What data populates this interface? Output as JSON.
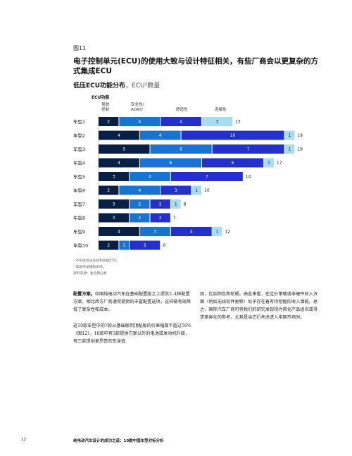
{
  "figure_label": "图11",
  "title": "电子控制单元(ECU)的使用大致与设计特征相关，有些厂商会以更复杂的方式集成ECU",
  "subtitle": "低压ECU功能分布",
  "subtitle_unit": "ECU¹数量",
  "chart_header": "ECU功能",
  "column_headers": [
    {
      "line1": "驾驶",
      "line2": "控制"
    },
    {
      "line1": "安全性/",
      "line2": "ADAS²"
    },
    {
      "line1": "舒适性",
      "line2": ""
    },
    {
      "line1": "连接性",
      "line2": ""
    }
  ],
  "colors": {
    "driving_control": "#0a1f44",
    "safety_adas": "#1a73d1",
    "comfort": "#2430c8",
    "connectivity": "#a8dcef"
  },
  "chart_data": {
    "type": "bar",
    "orientation": "horizontal",
    "stacked": true,
    "categories": [
      "车型1",
      "车型2",
      "车型3",
      "车型4",
      "车型5",
      "车型6",
      "车型7",
      "车型8",
      "车型9",
      "车型10"
    ],
    "series": [
      {
        "name": "驾驶控制",
        "values": [
          2,
          4,
          5,
          4,
          3,
          2,
          3,
          3,
          4,
          2
        ]
      },
      {
        "name": "安全性/ADAS",
        "values": [
          4,
          4,
          6,
          6,
          4,
          4,
          2,
          2,
          3,
          1
        ]
      },
      {
        "name": "舒适性",
        "values": [
          4,
          10,
          7,
          6,
          7,
          3,
          2,
          2,
          4,
          3
        ]
      },
      {
        "name": "连接性",
        "values": [
          3,
          1,
          1,
          1,
          0,
          1,
          1,
          0,
          1,
          0
        ]
      }
    ],
    "totals": [
      13,
      19,
      19,
      17,
      14,
      10,
      8,
      7,
      12,
      6
    ]
  },
  "footnotes": [
    "¹ 不包括高压系统和底盘ECU。",
    "² 高级驾驶辅助系统。",
    "资料来源：麦肯锡分析"
  ],
  "body": {
    "col1_p1_lead": "配置方案。",
    "col1_p1": "中国纯电动汽车在基础配置版之上提供2–4种配置方案。相比西方厂商通常提供的丰富配置选项，这样做有效降低了复杂性和成本。",
    "col1_p2": "这10款车型中的7款从基础版到顶配版的价差幅度不超过50%（图12）。10款中有5款提供方案以外的电池或发动机升级，有三款提供更昂贵的车身选",
    "col2_p1": "择，比如颜色和轮毂。由此来看，在定价策略或非硬件收入方面（例如无线软件更新）似乎存在着有待挖掘的收入潜能。总之，国际汽车厂商可将我们的研究发现视为简化产品组合或寻求差异化的参考，尤其是当它们考虑进入中国市场时。"
  },
  "footer": {
    "page_number": "12",
    "title": "纯电动汽车设计的成功之道：10款中国车型对标分析"
  }
}
